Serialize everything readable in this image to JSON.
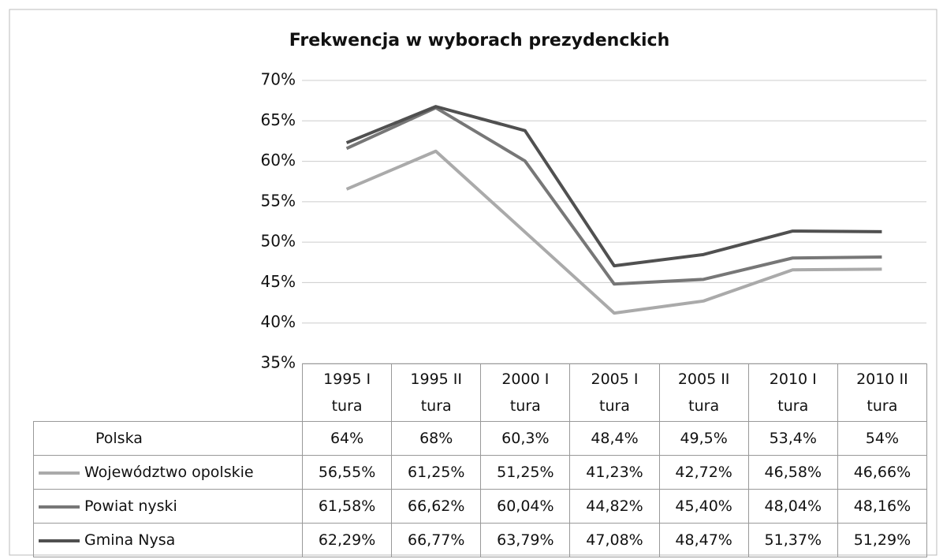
{
  "chart_data": {
    "type": "line",
    "title": "Frekwencja w wyborach prezydenckich",
    "categories": [
      "1995 I tura",
      "1995 II tura",
      "2000 I tura",
      "2005 I tura",
      "2005 II tura",
      "2010 I tura",
      "2010 II tura"
    ],
    "ylim": [
      35,
      70
    ],
    "yticks": [
      {
        "value": 35,
        "label": "35%"
      },
      {
        "value": 40,
        "label": "40%"
      },
      {
        "value": 45,
        "label": "45%"
      },
      {
        "value": 50,
        "label": "50%"
      },
      {
        "value": 55,
        "label": "55%"
      },
      {
        "value": 60,
        "label": "60%"
      },
      {
        "value": 65,
        "label": "65%"
      },
      {
        "value": 70,
        "label": "70%"
      }
    ],
    "grid": true,
    "series": [
      {
        "name": "Polska",
        "values": [
          64,
          68,
          60.3,
          48.4,
          49.5,
          53.4,
          54
        ],
        "value_labels": [
          "64%",
          "68%",
          "60,3%",
          "48,4%",
          "49,5%",
          "53,4%",
          "54%"
        ]
      },
      {
        "name": "Województwo opolskie",
        "color": "#aaaaaa",
        "values": [
          56.55,
          61.25,
          51.25,
          41.23,
          42.72,
          46.58,
          46.66
        ],
        "value_labels": [
          "56,55%",
          "61,25%",
          "51,25%",
          "41,23%",
          "42,72%",
          "46,58%",
          "46,66%"
        ]
      },
      {
        "name": "Powiat nyski",
        "color": "#777777",
        "values": [
          61.58,
          66.62,
          60.04,
          44.82,
          45.4,
          48.04,
          48.16
        ],
        "value_labels": [
          "61,58%",
          "66,62%",
          "60,04%",
          "44,82%",
          "45,40%",
          "48,04%",
          "48,16%"
        ]
      },
      {
        "name": "Gmina Nysa",
        "color": "#505050",
        "values": [
          62.29,
          66.77,
          63.79,
          47.08,
          48.47,
          51.37,
          51.29
        ],
        "value_labels": [
          "62,29%",
          "66,77%",
          "63,79%",
          "47,08%",
          "48,47%",
          "51,37%",
          "51,29%"
        ]
      }
    ]
  }
}
